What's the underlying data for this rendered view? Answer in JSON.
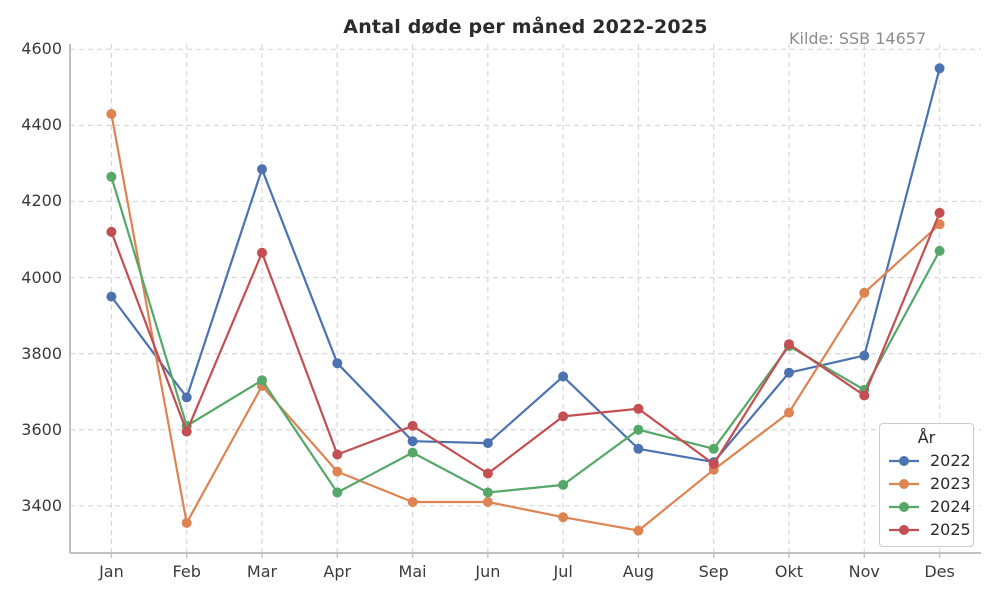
{
  "chart_data": {
    "type": "line",
    "title": "Antal døde per måned 2022-2025",
    "annotation": "Kilde: SSB 14657",
    "legend_title": "År",
    "legend_position": "lower right",
    "grid": "dashed",
    "categories": [
      "Jan",
      "Feb",
      "Mar",
      "Apr",
      "Mai",
      "Jun",
      "Jul",
      "Aug",
      "Sep",
      "Okt",
      "Nov",
      "Des"
    ],
    "yticks": [
      3400,
      3600,
      3800,
      4000,
      4200,
      4400,
      4600
    ],
    "ylim": [
      3276,
      4614
    ],
    "series": [
      {
        "name": "2022",
        "color": "#4C72B0",
        "values": [
          3950,
          3685,
          4285,
          3775,
          3570,
          3565,
          3740,
          3550,
          3515,
          3750,
          3795,
          4550
        ]
      },
      {
        "name": "2023",
        "color": "#DD8452",
        "values": [
          4430,
          3355,
          3715,
          3490,
          3410,
          3410,
          3370,
          3335,
          3495,
          3645,
          3960,
          4140
        ]
      },
      {
        "name": "2024",
        "color": "#55A868",
        "values": [
          4265,
          3610,
          3730,
          3435,
          3540,
          3435,
          3455,
          3600,
          3550,
          3820,
          3705,
          4070
        ]
      },
      {
        "name": "2025",
        "color": "#C44E52",
        "values": [
          4120,
          3595,
          4065,
          3535,
          3610,
          3485,
          3635,
          3655,
          3510,
          3825,
          3690,
          4170
        ]
      }
    ],
    "colors": {
      "grid": "#d8d8d8",
      "spine": "#c0c0c0",
      "tick_label": "#3b3b3b",
      "title": "#2b2b2b",
      "annotation": "#8c8c8c"
    }
  }
}
